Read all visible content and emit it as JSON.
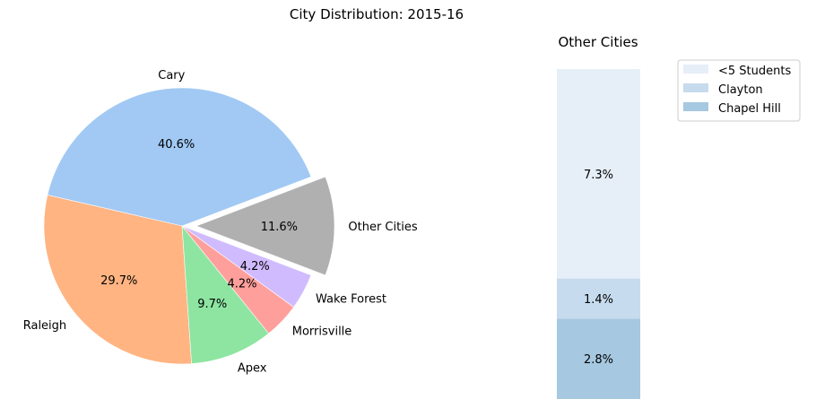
{
  "chart_data": [
    {
      "type": "pie",
      "title": "City Distribution: 2015-16",
      "slices": [
        {
          "label": "Cary",
          "value": 40.6,
          "pct_label": "40.6%",
          "color": "#a1c9f4",
          "explode": false
        },
        {
          "label": "Raleigh",
          "value": 29.7,
          "pct_label": "29.7%",
          "color": "#ffb482",
          "explode": false
        },
        {
          "label": "Apex",
          "value": 9.7,
          "pct_label": "9.7%",
          "color": "#8de5a1",
          "explode": false
        },
        {
          "label": "Morrisville",
          "value": 4.2,
          "pct_label": "4.2%",
          "color": "#ff9f9b",
          "explode": false
        },
        {
          "label": "Wake Forest",
          "value": 4.2,
          "pct_label": "4.2%",
          "color": "#d0bbff",
          "explode": false
        },
        {
          "label": "Other Cities",
          "value": 11.6,
          "pct_label": "11.6%",
          "color": "#b0b0b0",
          "explode": true
        }
      ]
    },
    {
      "type": "bar",
      "stacked": true,
      "title": "Other Cities",
      "segments": [
        {
          "name": "Chapel Hill",
          "value": 2.8,
          "pct_label": "2.8%",
          "color": "#a6c8e0"
        },
        {
          "name": "Clayton",
          "value": 1.4,
          "pct_label": "1.4%",
          "color": "#c6dbed"
        },
        {
          "name": "<5 Students",
          "value": 7.3,
          "pct_label": "7.3%",
          "color": "#e6eff8"
        }
      ],
      "legend": {
        "placement": "top-right",
        "entries": [
          "<5 Students",
          "Clayton",
          "Chapel Hill"
        ]
      }
    }
  ]
}
